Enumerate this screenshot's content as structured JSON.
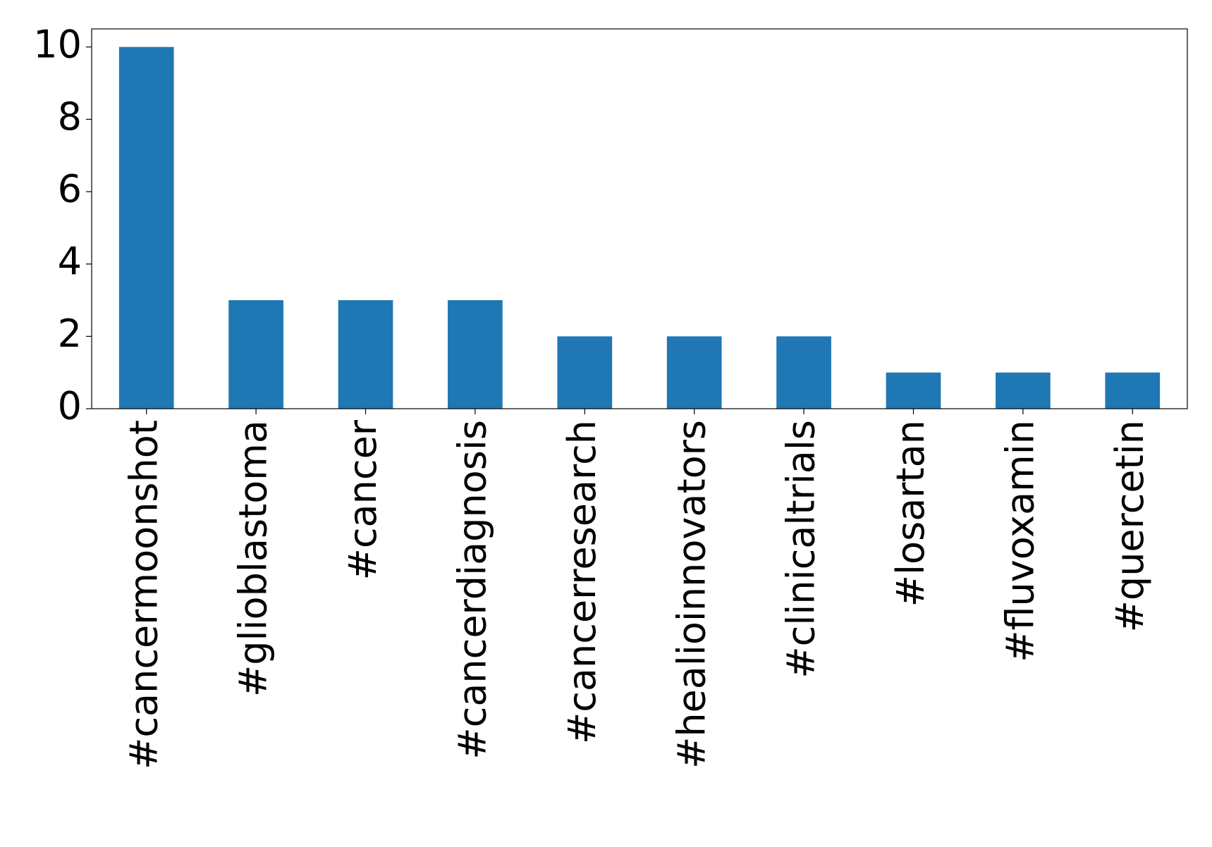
{
  "chart_data": {
    "type": "bar",
    "categories": [
      "#cancermoonshot",
      "#glioblastoma",
      "#cancer",
      "#cancerdiagnosis",
      "#cancerresearch",
      "#healioinnovators",
      "#clinicaltrials",
      "#losartan",
      "#fluvoxamin",
      "#quercetin"
    ],
    "values": [
      10,
      3,
      3,
      3,
      2,
      2,
      2,
      1,
      1,
      1
    ],
    "color": "#1f77b4",
    "ylim": [
      0,
      10.5
    ],
    "yticks": [
      0,
      2,
      4,
      6,
      8,
      10
    ],
    "grid": false
  }
}
